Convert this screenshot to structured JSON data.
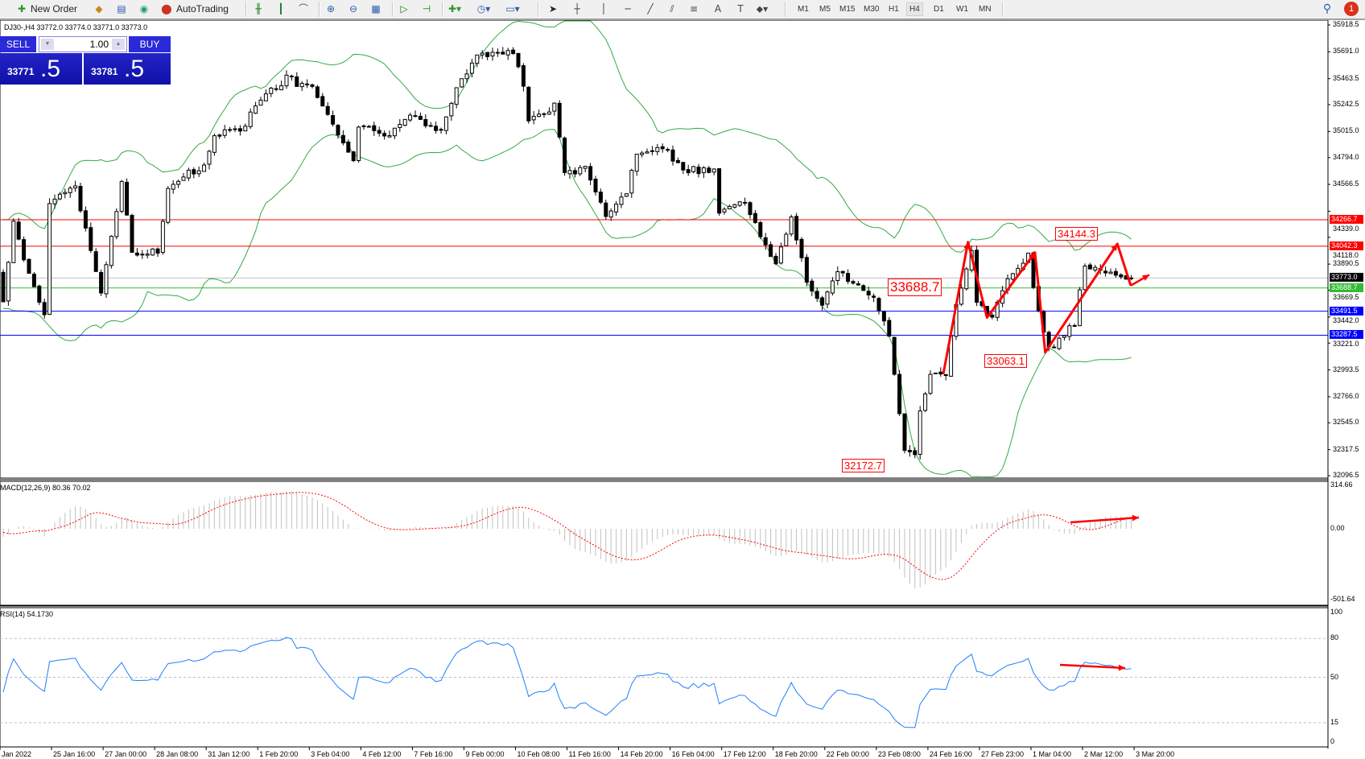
{
  "toolbar": {
    "new_order": "New Order",
    "auto_trading": "AutoTrading",
    "timeframes": [
      "M1",
      "M5",
      "M15",
      "M30",
      "H1",
      "H4",
      "D1",
      "W1",
      "MN"
    ],
    "active_timeframe": "H4",
    "notification_count": "1",
    "icons": [
      "new-order-icon",
      "market-watch-icon",
      "data-window-icon",
      "signals-icon",
      "autotrading-icon",
      "bar-chart-icon",
      "candlestick-icon",
      "line-chart-icon",
      "zoom-in-icon",
      "zoom-out-icon",
      "tile-windows-icon",
      "autoscroll-icon",
      "chart-shift-icon",
      "indicators-icon",
      "periods-icon",
      "templates-icon",
      "cursor-icon",
      "crosshair-icon",
      "vertical-line-icon",
      "horizontal-line-icon",
      "trendline-icon",
      "equidistant-channel-icon",
      "fibonacci-icon",
      "text-icon",
      "text-label-icon",
      "shapes-icon",
      "search-icon",
      "notifications-icon"
    ]
  },
  "chart": {
    "header": "DJ30-,H4  33772.0 33774.0 33771.0 33773.0"
  },
  "trade_panel": {
    "sell_label": "SELL",
    "buy_label": "BUY",
    "quantity": "1.00",
    "sell_price_main": "33771",
    "sell_price_big": ".5",
    "buy_price_main": "33781",
    "buy_price_big": ".5"
  },
  "chart_data": {
    "type": "candlestick",
    "symbol": "DJ30-",
    "timeframe": "H4",
    "last_ohlc": {
      "open": 33772.0,
      "high": 33774.0,
      "low": 33771.0,
      "close": 33773.0
    },
    "price_axis_ticks": [
      "35918.5",
      "35691.0",
      "35463.5",
      "35242.5",
      "35015.0",
      "34794.0",
      "34566.5",
      "34339.0",
      "34118.0",
      "33890.5",
      "33669.5",
      "33442.0",
      "33221.0",
      "32993.5",
      "32766.0",
      "32545.0",
      "32317.5",
      "32096.5"
    ],
    "ylim": [
      32096.5,
      35918.5
    ],
    "time_axis_ticks": [
      "Jan 2022",
      "25 Jan 16:00",
      "27 Jan 00:00",
      "28 Jan 08:00",
      "31 Jan 12:00",
      "1 Feb 20:00",
      "3 Feb 04:00",
      "4 Feb 12:00",
      "7 Feb 16:00",
      "9 Feb 00:00",
      "10 Feb 08:00",
      "11 Feb 16:00",
      "14 Feb 20:00",
      "16 Feb 04:00",
      "17 Feb 12:00",
      "18 Feb 20:00",
      "22 Feb 00:00",
      "23 Feb 08:00",
      "24 Feb 16:00",
      "27 Feb 23:00",
      "1 Mar 04:00",
      "2 Mar 12:00",
      "3 Mar 20:00"
    ],
    "close_anchors": [
      [
        0,
        33584
      ],
      [
        2,
        34283
      ],
      [
        5,
        33800
      ],
      [
        8,
        33474
      ],
      [
        9,
        34430
      ],
      [
        14,
        34578
      ],
      [
        15,
        34357
      ],
      [
        19,
        33620
      ],
      [
        23,
        34578
      ],
      [
        25,
        33989
      ],
      [
        30,
        33989
      ],
      [
        32,
        34541
      ],
      [
        35,
        34652
      ],
      [
        39,
        34700
      ],
      [
        41,
        34983
      ],
      [
        46,
        35020
      ],
      [
        49,
        35241
      ],
      [
        55,
        35461
      ],
      [
        60,
        35388
      ],
      [
        63,
        35130
      ],
      [
        68,
        34762
      ],
      [
        69,
        35057
      ],
      [
        74,
        34983
      ],
      [
        79,
        35130
      ],
      [
        85,
        35020
      ],
      [
        88,
        35388
      ],
      [
        92,
        35646
      ],
      [
        99,
        35683
      ],
      [
        101,
        35388
      ],
      [
        102,
        35094
      ],
      [
        107,
        35241
      ],
      [
        109,
        34652
      ],
      [
        113,
        34689
      ],
      [
        117,
        34320
      ],
      [
        121,
        34504
      ],
      [
        123,
        34836
      ],
      [
        128,
        34873
      ],
      [
        132,
        34689
      ],
      [
        138,
        34689
      ],
      [
        139,
        34357
      ],
      [
        144,
        34400
      ],
      [
        147,
        34136
      ],
      [
        150,
        33915
      ],
      [
        153,
        34283
      ],
      [
        156,
        33768
      ],
      [
        159,
        33510
      ],
      [
        162,
        33842
      ],
      [
        169,
        33620
      ],
      [
        172,
        33252
      ],
      [
        173,
        32958
      ],
      [
        175,
        32332
      ],
      [
        177,
        32295
      ],
      [
        178,
        32664
      ],
      [
        180,
        32958
      ],
      [
        183,
        32958
      ],
      [
        185,
        33547
      ],
      [
        188,
        34000
      ],
      [
        189,
        33550
      ],
      [
        192,
        33437
      ],
      [
        195,
        33800
      ],
      [
        199,
        33952
      ],
      [
        201,
        33500
      ],
      [
        203,
        33179
      ],
      [
        205,
        33250
      ],
      [
        208,
        33400
      ],
      [
        210,
        33879
      ],
      [
        214,
        33850
      ],
      [
        217,
        33768
      ],
      [
        219,
        33773
      ]
    ],
    "levels": [
      {
        "price": 34266.7,
        "label": "34266.7",
        "color": "#ff0000"
      },
      {
        "price": 34042.3,
        "label": "34042.3",
        "color": "#ff0000"
      },
      {
        "price": 33773.0,
        "label": "33773.0",
        "color": "#000000",
        "line_color": "#c0c0c0"
      },
      {
        "price": 33688.7,
        "label": "33688.7",
        "color": "#33bb33"
      },
      {
        "price": 33491.5,
        "label": "33491.5",
        "color": "#0000ff"
      },
      {
        "price": 33287.5,
        "label": "33287.5",
        "color": "#0000ff"
      }
    ],
    "annotations": [
      "33688.7",
      "34144.3",
      "33063.1",
      "32172.7"
    ],
    "overlay": "Bollinger Bands (20)",
    "band_color": "#33aa44",
    "macd": {
      "label": "MACD(12,26,9) 80.36 70.02",
      "ticks": [
        "314.66",
        "0.00",
        "-501.64"
      ],
      "ylim": [
        -501.64,
        314.66
      ],
      "histogram_color": "#c0c0c0",
      "signal_color": "#ff0000"
    },
    "rsi": {
      "label": "RSI(14) 54.1730",
      "ticks": [
        "100",
        "80",
        "50",
        "15",
        "0"
      ],
      "levels": [
        80,
        50,
        15
      ],
      "color": "#1e7fff"
    }
  }
}
